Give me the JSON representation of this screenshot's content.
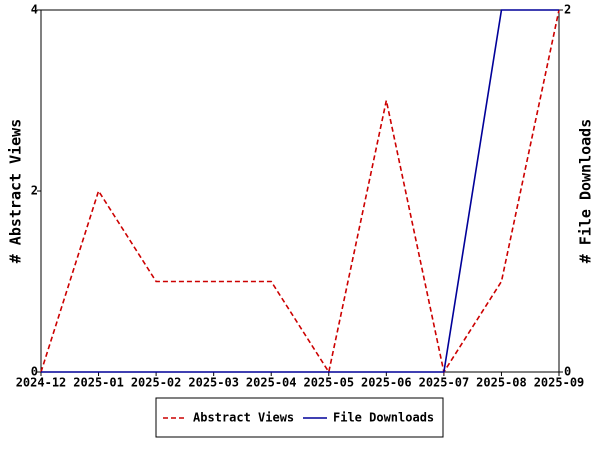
{
  "chart_data": {
    "type": "line",
    "categories": [
      "2024-12",
      "2025-01",
      "2025-02",
      "2025-03",
      "2025-04",
      "2025-05",
      "2025-06",
      "2025-07",
      "2025-08",
      "2025-09"
    ],
    "y_label": "# Abstract Views",
    "y2_label": "# File Downloads",
    "ylim": [
      0,
      4
    ],
    "yticks": [
      0,
      2,
      4
    ],
    "y2lim": [
      0,
      2
    ],
    "y2ticks": [
      0,
      2
    ],
    "series": [
      {
        "name": "Abstract Views",
        "color": "#cc0000",
        "dash": true,
        "values": [
          0,
          2,
          1,
          1,
          1,
          0,
          3,
          0,
          1,
          4
        ]
      },
      {
        "name": "File Downloads",
        "color": "#000099",
        "dash": false,
        "axis": "y2",
        "values": [
          0,
          0,
          0,
          0,
          0,
          0,
          0,
          0,
          2,
          2
        ]
      }
    ]
  }
}
